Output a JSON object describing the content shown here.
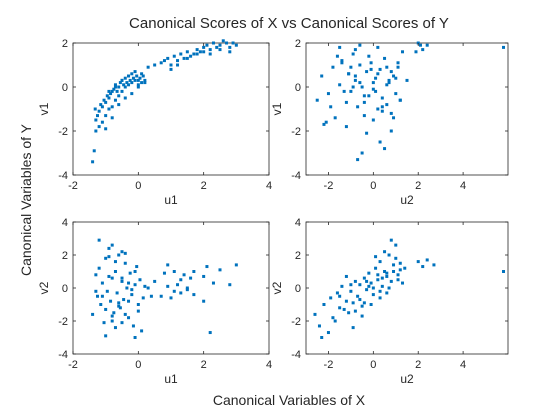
{
  "figure": {
    "title": "Canonical Scores of X vs Canonical Scores of Y",
    "xlabel": "Canonical Variables of X",
    "ylabel": "Canonical Variables of Y"
  },
  "colors": {
    "marker": "#0072BD",
    "axis": "#262626"
  },
  "chart_data": [
    {
      "type": "scatter",
      "xlabel": "u1",
      "ylabel": "v1",
      "xlim": [
        -2,
        4
      ],
      "ylim": [
        -4,
        2
      ],
      "xticks": [
        -2,
        0,
        2,
        4
      ],
      "yticks": [
        -4,
        -2,
        0,
        2
      ],
      "x": [
        -1.4,
        -1.35,
        -1.3,
        -1.32,
        -1.25,
        -1.2,
        -1.15,
        -1.1,
        -1.05,
        -1.0,
        -0.95,
        -0.9,
        -0.85,
        -0.8,
        -0.75,
        -0.7,
        -0.65,
        -0.6,
        -0.55,
        -0.5,
        -0.45,
        -0.4,
        -0.35,
        -0.3,
        -0.25,
        -0.2,
        -0.15,
        -0.1,
        -0.05,
        0.0,
        0.05,
        0.1,
        0.15,
        0.2,
        -1.2,
        -1.1,
        -1.0,
        -0.9,
        -0.8,
        -0.7,
        -0.6,
        -0.5,
        -0.4,
        -0.3,
        -0.2,
        -0.1,
        0.0,
        0.1,
        -1.3,
        -1.0,
        -0.8,
        -0.6,
        -0.4,
        -0.2,
        0.0,
        0.2,
        -0.9,
        -0.7,
        -0.5,
        -0.3,
        0.3,
        0.5,
        0.7,
        0.8,
        0.9,
        1.0,
        1.1,
        1.2,
        1.3,
        1.4,
        1.5,
        1.6,
        1.7,
        1.8,
        1.9,
        2.0,
        2.1,
        2.2,
        2.3,
        2.4,
        2.5,
        2.6,
        2.7,
        2.8,
        2.9,
        3.0,
        1.0,
        1.2,
        1.5,
        1.8,
        2.0,
        2.2,
        2.5,
        2.8
      ],
      "y": [
        -3.4,
        -2.9,
        -1.5,
        -1.0,
        -1.3,
        -1.1,
        -0.8,
        -0.9,
        -0.6,
        -0.7,
        -0.4,
        -0.5,
        -0.3,
        -0.2,
        -0.1,
        0.1,
        -0.2,
        0.0,
        0.2,
        0.3,
        0.1,
        0.4,
        0.2,
        0.5,
        0.3,
        0.6,
        0.4,
        0.7,
        0.5,
        0.3,
        0.4,
        0.6,
        0.5,
        0.2,
        -1.8,
        -1.6,
        -1.3,
        -1.0,
        -0.9,
        -0.6,
        -0.4,
        -0.2,
        0.0,
        0.1,
        0.2,
        0.3,
        0.0,
        0.2,
        -2.0,
        -1.9,
        -1.4,
        -0.8,
        -0.5,
        -0.3,
        0.1,
        0.3,
        -0.2,
        0.0,
        0.3,
        0.5,
        0.9,
        1.0,
        1.1,
        1.2,
        1.3,
        1.0,
        1.4,
        1.2,
        1.5,
        1.3,
        1.6,
        1.4,
        1.5,
        1.7,
        1.6,
        1.8,
        1.9,
        1.7,
        2.0,
        1.8,
        1.9,
        2.1,
        2.0,
        1.8,
        2.0,
        1.9,
        0.8,
        1.0,
        1.3,
        1.5,
        1.6,
        1.5,
        1.7,
        1.6
      ]
    },
    {
      "type": "scatter",
      "xlabel": "u2",
      "ylabel": "v1",
      "xlim": [
        -3,
        6
      ],
      "ylim": [
        -4,
        2
      ],
      "xticks": [
        -2,
        0,
        2,
        4
      ],
      "yticks": [
        -4,
        -2,
        0,
        2
      ],
      "x": [
        -2.5,
        -2.3,
        -2.1,
        -2.0,
        -1.8,
        -1.7,
        -1.5,
        -1.4,
        -1.2,
        -1.1,
        -1.0,
        -0.9,
        -0.8,
        -0.7,
        -0.6,
        -0.5,
        -0.4,
        -0.3,
        -0.2,
        -0.1,
        0.0,
        0.1,
        0.2,
        0.3,
        0.4,
        0.5,
        0.6,
        0.7,
        0.8,
        0.9,
        1.0,
        1.1,
        1.2,
        1.3,
        -1.6,
        -1.3,
        -1.0,
        -0.8,
        -0.6,
        -0.4,
        -0.2,
        0.0,
        0.2,
        0.4,
        0.6,
        0.8,
        1.0,
        -1.9,
        -1.5,
        -1.2,
        -0.9,
        -0.5,
        -0.1,
        0.3,
        0.7,
        1.1,
        -2.2,
        -0.7,
        -0.3,
        0.5,
        0.9,
        -1.1,
        -0.6,
        0.2,
        0.6,
        1.2,
        2.0,
        2.2,
        2.4,
        5.8,
        -0.4,
        0.0,
        0.4,
        -1.4,
        -0.8,
        0.1,
        0.8,
        1.5,
        1.9,
        2.1
      ],
      "y": [
        -0.6,
        0.5,
        -1.6,
        -0.3,
        0.9,
        -1.4,
        0.1,
        1.2,
        -0.7,
        0.6,
        -0.2,
        1.5,
        0.3,
        -0.9,
        1.0,
        0.0,
        -1.3,
        0.7,
        -0.4,
        1.1,
        -0.1,
        0.4,
        -1.0,
        0.8,
        -0.5,
        1.3,
        -0.8,
        0.2,
        -1.2,
        0.5,
        -0.3,
        0.9,
        -0.6,
        1.6,
        1.4,
        -0.2,
        0.9,
        1.7,
        0.2,
        -0.7,
        1.4,
        -1.5,
        0.6,
        -1.1,
        0.1,
        -2.0,
        0.4,
        -0.9,
        1.8,
        -1.8,
        0.0,
        -3.0,
        0.8,
        -2.5,
        0.3,
        1.1,
        -1.7,
        -3.3,
        -2.1,
        -2.8,
        -1.4,
        0.6,
        1.9,
        1.8,
        0.9,
        -0.6,
        2.0,
        1.7,
        1.9,
        1.8,
        -0.4,
        0.2,
        -0.9,
        1.1,
        0.5,
        -0.2,
        0.7,
        0.3,
        1.6,
        1.9
      ]
    },
    {
      "type": "scatter",
      "xlabel": "u1",
      "ylabel": "v2",
      "xlim": [
        -2,
        4
      ],
      "ylim": [
        -4,
        4
      ],
      "xticks": [
        -2,
        0,
        2,
        4
      ],
      "yticks": [
        -4,
        -2,
        0,
        2,
        4
      ],
      "x": [
        -1.4,
        -1.3,
        -1.25,
        -1.2,
        -1.15,
        -1.1,
        -1.05,
        -1.0,
        -0.95,
        -0.9,
        -0.85,
        -0.8,
        -0.75,
        -0.7,
        -0.65,
        -0.6,
        -0.55,
        -0.5,
        -0.45,
        -0.4,
        -0.35,
        -0.3,
        -0.25,
        -0.2,
        -0.15,
        -0.1,
        -0.05,
        0.0,
        0.05,
        0.1,
        0.15,
        0.2,
        -1.2,
        -1.0,
        -0.9,
        -0.8,
        -0.7,
        -0.6,
        -0.5,
        -0.4,
        -0.3,
        -0.2,
        -0.1,
        0.0,
        -1.1,
        -0.9,
        -0.7,
        -0.5,
        -0.3,
        -0.1,
        -1.3,
        -1.0,
        -0.8,
        -0.6,
        -0.4,
        0.5,
        0.7,
        0.8,
        0.9,
        1.0,
        1.1,
        1.2,
        1.3,
        1.4,
        1.5,
        1.6,
        1.7,
        2.0,
        2.1,
        2.2,
        2.3,
        2.5,
        2.8,
        3.0,
        0.9,
        1.1,
        1.3,
        1.5,
        1.7,
        2.0,
        0.3,
        0.4,
        -0.8,
        -0.5
      ],
      "y": [
        -1.6,
        0.8,
        -0.5,
        1.2,
        -1.0,
        0.3,
        -2.1,
        1.8,
        -0.2,
        2.4,
        -0.8,
        0.6,
        -1.5,
        1.0,
        -0.3,
        2.0,
        -1.2,
        0.4,
        -0.7,
        1.5,
        0.0,
        -1.8,
        0.9,
        -0.4,
        -2.3,
        0.2,
        1.3,
        -1.0,
        0.5,
        -2.6,
        -0.6,
        0.1,
        2.9,
        -1.3,
        0.7,
        -2.0,
        1.6,
        -0.9,
        2.2,
        -1.6,
        0.3,
        -0.1,
        1.0,
        -1.4,
        -0.5,
        1.9,
        -2.4,
        0.6,
        -0.8,
        -3.0,
        -0.2,
        -2.9,
        2.6,
        -1.1,
        2.1,
        0.4,
        -0.5,
        0.9,
        0.1,
        -0.6,
        1.0,
        0.2,
        -0.3,
        0.8,
        -0.1,
        0.6,
        -0.4,
        0.7,
        1.3,
        -2.7,
        0.3,
        1.1,
        0.2,
        1.4,
        1.4,
        -0.2,
        0.5,
        0.0,
        1.0,
        -0.8,
        0.0,
        -0.5,
        -1.7,
        -2.1
      ]
    },
    {
      "type": "scatter",
      "xlabel": "u2",
      "ylabel": "v2",
      "xlim": [
        -3,
        6
      ],
      "ylim": [
        -4,
        4
      ],
      "xticks": [
        -2,
        0,
        2,
        4
      ],
      "yticks": [
        -4,
        -2,
        0,
        2,
        4
      ],
      "x": [
        -2.6,
        -2.4,
        -2.2,
        -2.0,
        -1.9,
        -1.8,
        -1.6,
        -1.5,
        -1.4,
        -1.2,
        -1.1,
        -1.0,
        -0.9,
        -0.8,
        -0.7,
        -0.6,
        -0.5,
        -0.4,
        -0.3,
        -0.2,
        -0.1,
        0.0,
        0.1,
        0.2,
        0.3,
        0.4,
        0.5,
        0.6,
        0.7,
        0.8,
        0.9,
        1.0,
        1.1,
        1.2,
        1.3,
        -1.7,
        -1.3,
        -0.9,
        -0.5,
        -0.1,
        0.3,
        0.7,
        1.1,
        -2.3,
        -1.0,
        -0.4,
        0.2,
        0.6,
        1.0,
        1.4,
        0.8,
        0.5,
        -0.6,
        -1.2,
        2.0,
        2.2,
        2.4,
        2.7,
        5.8,
        -0.2,
        0.4,
        0.9,
        -0.8,
        0.0,
        0.6,
        -1.5,
        1.2,
        0.3,
        -0.3,
        0.1
      ],
      "y": [
        -1.6,
        -2.3,
        -1.0,
        -2.7,
        -0.6,
        -1.8,
        -0.3,
        -1.2,
        0.1,
        -0.8,
        -1.5,
        -0.2,
        -0.9,
        0.4,
        -0.5,
        0.2,
        -1.1,
        0.6,
        -0.1,
        0.9,
        0.3,
        -0.4,
        1.2,
        0.5,
        1.6,
        0.1,
        1.0,
        0.7,
        2.0,
        0.4,
        1.4,
        2.6,
        0.8,
        1.1,
        0.3,
        -2.0,
        -1.3,
        -2.4,
        -1.7,
        -1.0,
        -0.6,
        0.0,
        0.5,
        -3.0,
        0.2,
        -0.9,
        0.8,
        -0.3,
        1.8,
        1.2,
        2.9,
        2.2,
        -0.7,
        0.7,
        1.6,
        1.3,
        1.7,
        1.4,
        1.0,
        0.1,
        0.6,
        1.0,
        -1.4,
        0.0,
        0.9,
        -0.5,
        1.5,
        -0.2,
        0.4,
        1.9
      ]
    }
  ]
}
